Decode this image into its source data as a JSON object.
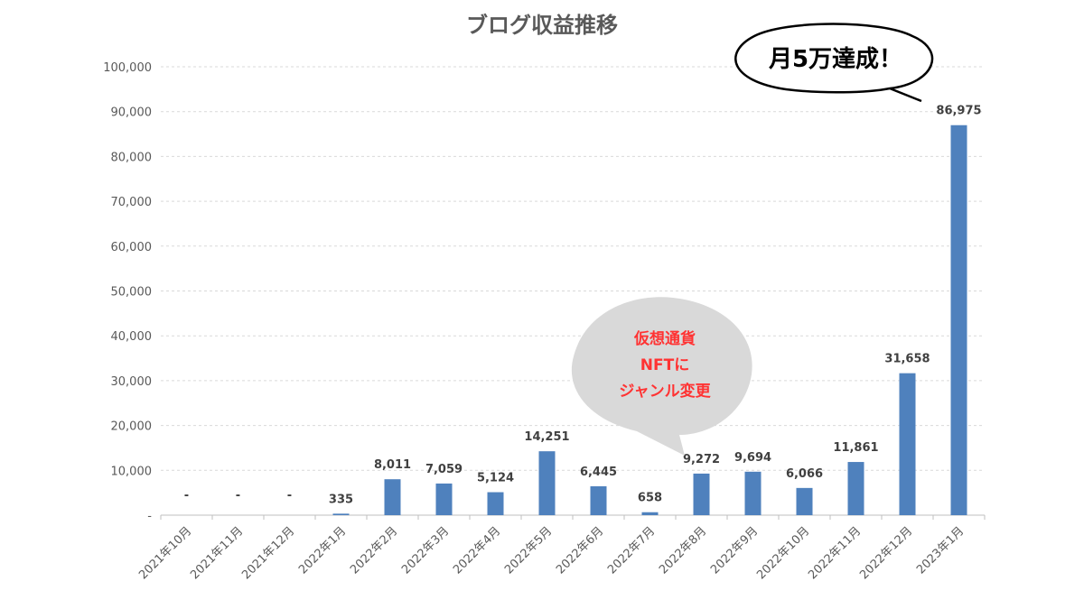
{
  "chart_data": {
    "type": "bar",
    "title": "ブログ収益推移",
    "xlabel": "",
    "ylabel": "",
    "ylim": [
      0,
      100000
    ],
    "yticks": [
      0,
      10000,
      20000,
      30000,
      40000,
      50000,
      60000,
      70000,
      80000,
      90000,
      100000
    ],
    "ytick_labels": [
      "-",
      "10,000",
      "20,000",
      "30,000",
      "40,000",
      "50,000",
      "60,000",
      "70,000",
      "80,000",
      "90,000",
      "100,000"
    ],
    "grid": true,
    "categories": [
      "2021年10月",
      "2021年11月",
      "2021年12月",
      "2022年1月",
      "2022年2月",
      "2022年3月",
      "2022年4月",
      "2022年5月",
      "2022年6月",
      "2022年7月",
      "2022年8月",
      "2022年9月",
      "2022年10月",
      "2022年11月",
      "2022年12月",
      "2023年1月"
    ],
    "values": [
      0,
      0,
      0,
      335,
      8011,
      7059,
      5124,
      14251,
      6445,
      658,
      9272,
      9694,
      6066,
      11861,
      31658,
      86975
    ],
    "data_labels": [
      "-",
      "-",
      "-",
      "335",
      "8,011",
      "7,059",
      "5,124",
      "14,251",
      "6,445",
      "658",
      "9,272",
      "9,694",
      "6,066",
      "11,861",
      "31,658",
      "86,975"
    ],
    "color": "#4f81bd",
    "annotations": [
      {
        "text": "月5万達成！",
        "target": "2023年1月",
        "shape": "speech-bubble",
        "fill": "#ffffff",
        "text_color": "#000000"
      },
      {
        "lines": [
          "仮想通貨",
          "NFTに",
          "ジャンル変更"
        ],
        "target": "2022年8月",
        "shape": "speech-bubble",
        "fill": "#d9d9d9",
        "text_color": "#ff3333"
      }
    ]
  }
}
